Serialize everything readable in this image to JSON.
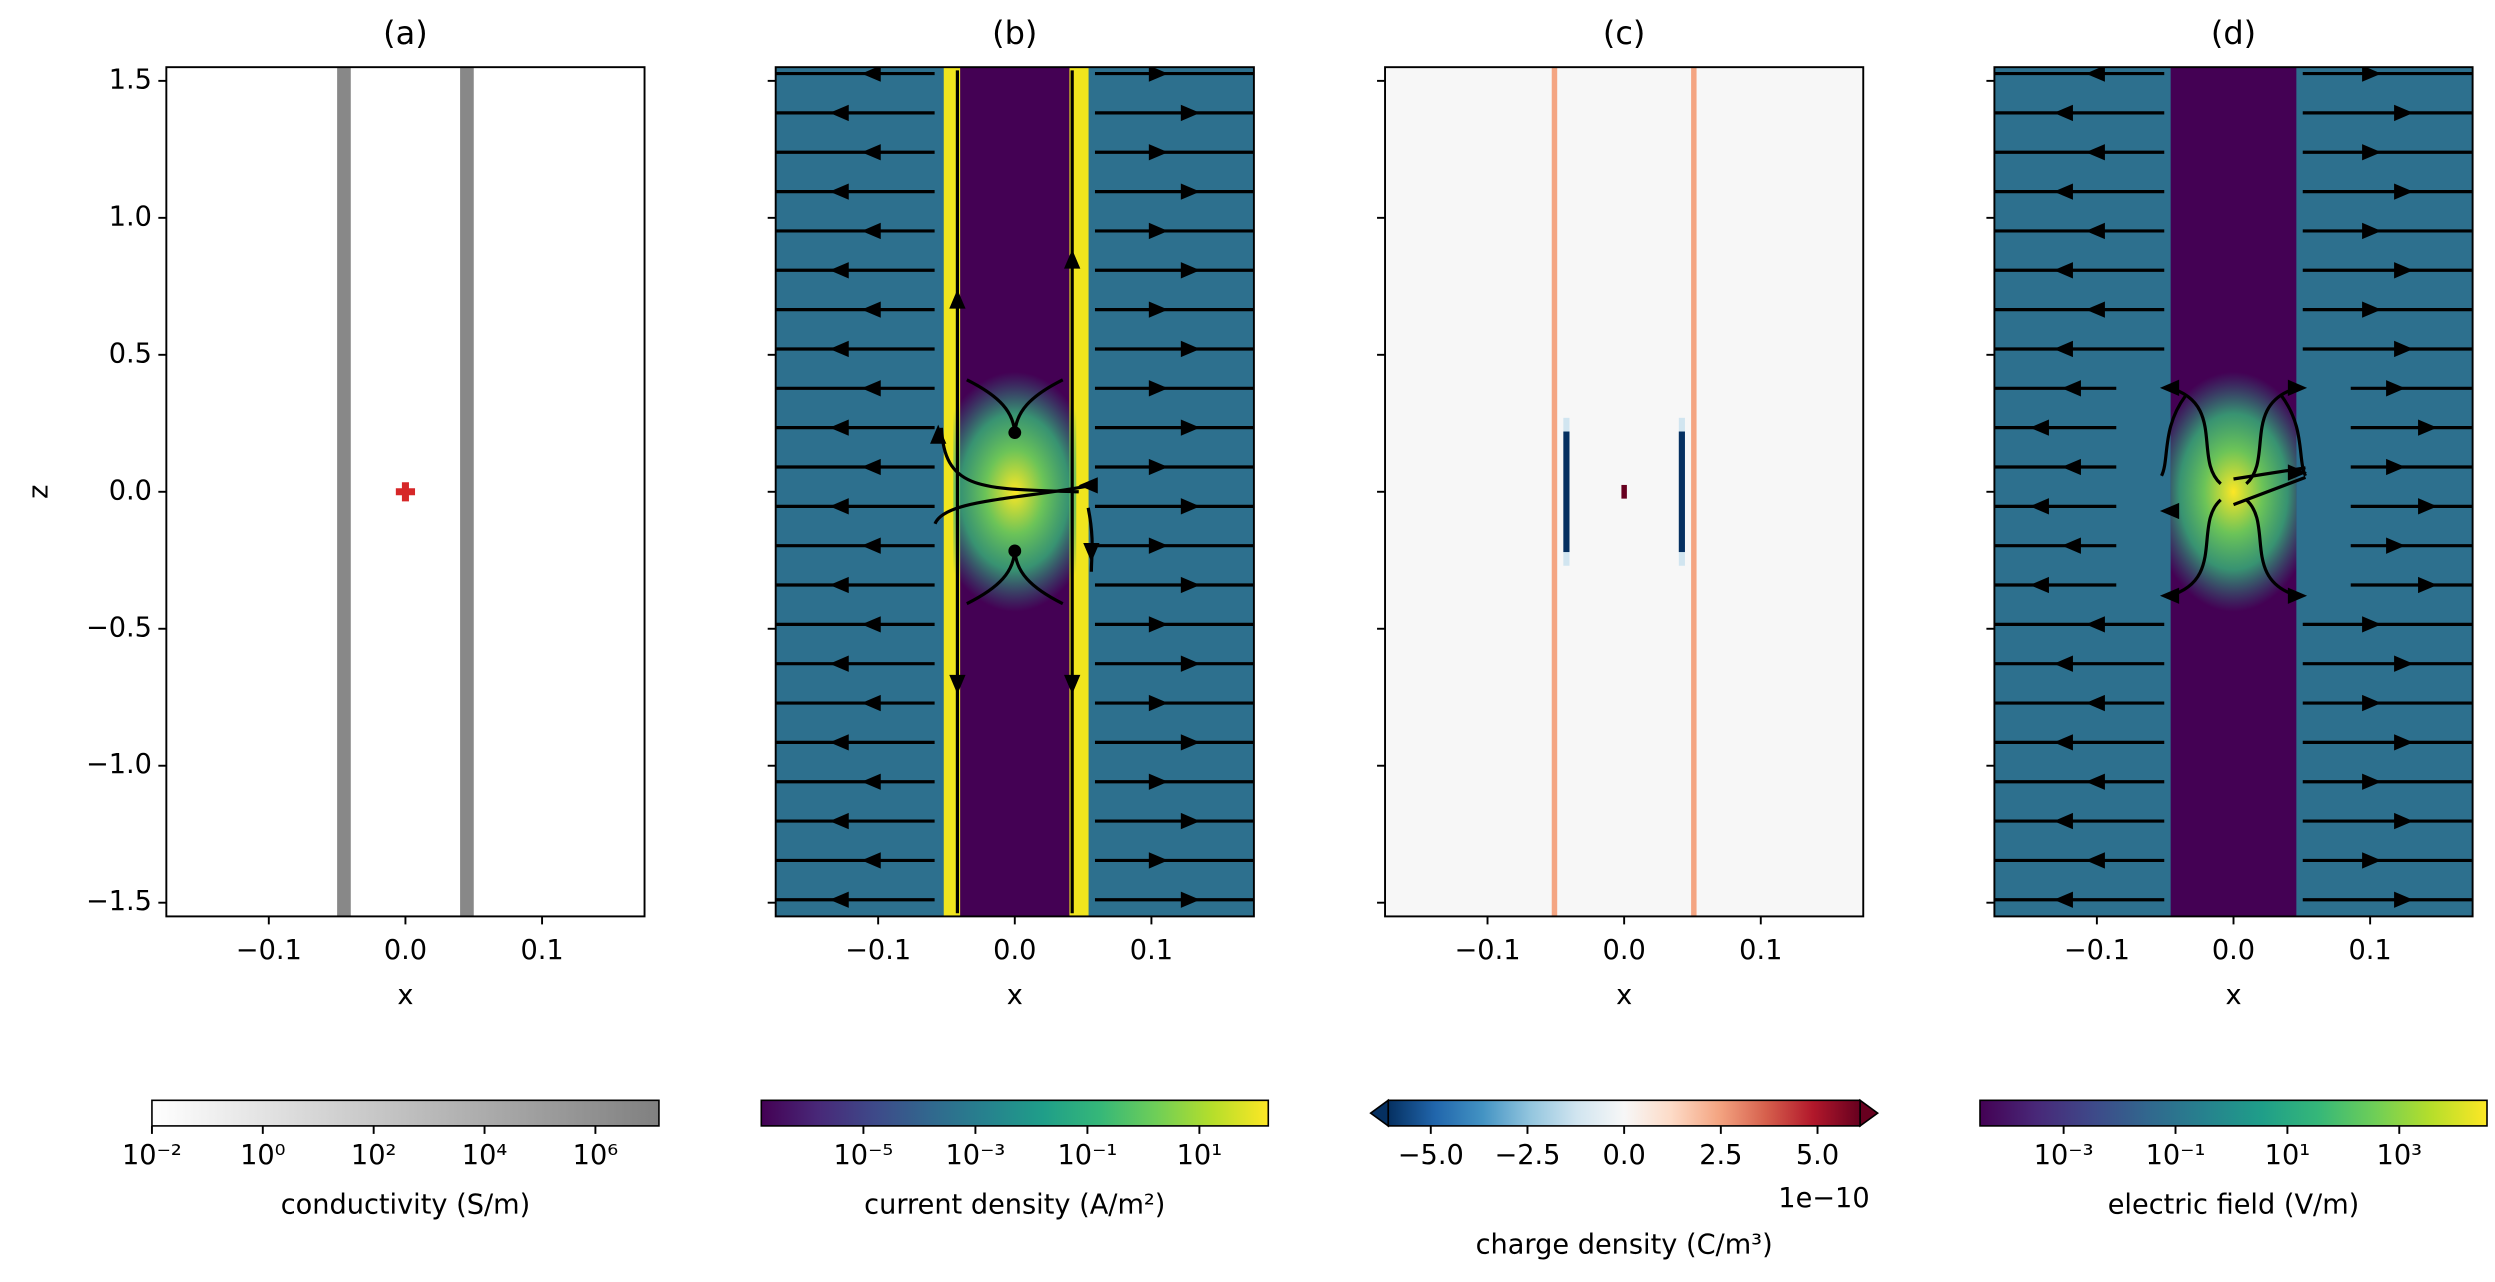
{
  "chart_data": [
    {
      "type": "heatmap",
      "title": "(a)",
      "xlabel": "x",
      "ylabel": "z",
      "xlim": [
        -0.175,
        0.175
      ],
      "ylim": [
        -1.55,
        1.55
      ],
      "xticks": [
        {
          "value": -0.1,
          "label": "−0.1"
        },
        {
          "value": 0,
          "label": "0.0"
        },
        0.1
      ],
      "yticks": [
        {
          "value": -1.5,
          "label": "−1.5"
        },
        {
          "value": -1.0,
          "label": "−1.0"
        },
        {
          "value": -0.5,
          "label": "−0.5"
        },
        {
          "value": 0,
          "label": "0.0"
        },
        0.5,
        {
          "value": 1.0,
          "label": "1.0"
        },
        1.5
      ],
      "ytick_labels": true,
      "background": "#ffffff",
      "bands": [
        {
          "x": [
            -0.05,
            -0.04
          ],
          "color": "#888888"
        },
        {
          "x": [
            0.04,
            0.05
          ],
          "color": "#888888"
        }
      ],
      "source": {
        "x": 0,
        "z": 0,
        "color": "#d62728"
      },
      "colorbar": {
        "label": "conductivity (S/m)",
        "scale": "log",
        "clim": [
          0.01,
          14000000
        ],
        "ticks": [
          {
            "value": 0.01,
            "label": "10⁻²"
          },
          {
            "value": 1,
            "label": "10⁰"
          },
          {
            "value": 100,
            "label": "10²"
          },
          {
            "value": 10000,
            "label": "10⁴"
          },
          {
            "value": 1000000,
            "label": "10⁶"
          }
        ],
        "colors": [
          "#ffffff",
          "#808080"
        ]
      }
    },
    {
      "type": "heatmap",
      "title": "(b)",
      "xlabel": "x",
      "xlim": [
        -0.175,
        0.175
      ],
      "ylim": [
        -1.55,
        1.55
      ],
      "xticks": [
        {
          "value": -0.1,
          "label": "−0.1"
        },
        {
          "value": 0,
          "label": "0.0"
        },
        0.1
      ],
      "yticks": [
        -1.5,
        -1.0,
        -0.5,
        0,
        0.5,
        1.0,
        1.5
      ],
      "ytick_labels": false,
      "background": "#2d708e",
      "bands": [
        {
          "x": [
            -0.045,
            0.045
          ],
          "color": "#440154"
        },
        {
          "x": [
            -0.052,
            -0.04
          ],
          "color": "#f0e51e"
        },
        {
          "x": [
            0.04,
            0.054
          ],
          "color": "#f0e51e"
        }
      ],
      "glow": {
        "x": 0,
        "z": 0
      },
      "streamlines": "current",
      "colorbar": {
        "label": "current density (A/m²)",
        "scale": "log",
        "clim": [
          1.5e-07,
          170
        ],
        "ticks": [
          {
            "value": 1e-05,
            "label": "10⁻⁵"
          },
          {
            "value": 0.001,
            "label": "10⁻³"
          },
          {
            "value": 0.1,
            "label": "10⁻¹"
          },
          {
            "value": 10,
            "label": "10¹"
          }
        ],
        "colors": [
          "#440154",
          "#482878",
          "#3e4989",
          "#31688e",
          "#26828e",
          "#1f9e89",
          "#35b779",
          "#6ece58",
          "#b5de2b",
          "#fde725"
        ]
      }
    },
    {
      "type": "heatmap",
      "title": "(c)",
      "xlabel": "x",
      "xlim": [
        -0.175,
        0.175
      ],
      "ylim": [
        -1.55,
        1.55
      ],
      "xticks": [
        {
          "value": -0.1,
          "label": "−0.1"
        },
        {
          "value": 0,
          "label": "0.0"
        },
        0.1
      ],
      "yticks": [
        -1.5,
        -1.0,
        -0.5,
        0,
        0.5,
        1.0,
        1.5
      ],
      "ytick_labels": false,
      "background": "#f7f7f7",
      "bands": [
        {
          "x": [
            -0.053,
            -0.049
          ],
          "color": "#f4a582"
        },
        {
          "x": [
            0.049,
            0.053
          ],
          "color": "#f4a582"
        },
        {
          "x": [
            -0.0445,
            -0.04
          ],
          "z": [
            -0.27,
            0.27
          ],
          "color": "#d1e5f0"
        },
        {
          "x": [
            0.04,
            0.0445
          ],
          "z": [
            -0.27,
            0.27
          ],
          "color": "#d1e5f0"
        },
        {
          "x": [
            -0.0445,
            -0.04
          ],
          "z": [
            -0.22,
            0.22
          ],
          "color": "#053061"
        },
        {
          "x": [
            0.04,
            0.0445
          ],
          "z": [
            -0.22,
            0.22
          ],
          "color": "#053061"
        },
        {
          "x": [
            -0.002,
            0.002
          ],
          "z": [
            -0.025,
            0.025
          ],
          "color": "#67001f"
        }
      ],
      "colorbar": {
        "label": "charge density (C/m³)",
        "scale": "linear",
        "clim": [
          -6.1,
          6.1
        ],
        "extend": "both",
        "offset": "1e−10",
        "ticks": [
          {
            "value": -5,
            "label": "−5.0"
          },
          {
            "value": -2.5,
            "label": "−2.5"
          },
          {
            "value": 0,
            "label": "0.0"
          },
          2.5,
          {
            "value": 5,
            "label": "5.0"
          }
        ],
        "colors": [
          "#053061",
          "#2166ac",
          "#4393c3",
          "#92c5de",
          "#d1e5f0",
          "#f7f7f7",
          "#fddbc7",
          "#f4a582",
          "#d6604d",
          "#b2182b",
          "#67001f"
        ]
      }
    },
    {
      "type": "heatmap",
      "title": "(d)",
      "xlabel": "x",
      "xlim": [
        -0.175,
        0.175
      ],
      "ylim": [
        -1.55,
        1.55
      ],
      "xticks": [
        {
          "value": -0.1,
          "label": "−0.1"
        },
        {
          "value": 0,
          "label": "0.0"
        },
        0.1
      ],
      "yticks": [
        -1.5,
        -1.0,
        -0.5,
        0,
        0.5,
        1.0,
        1.5
      ],
      "ytick_labels": false,
      "background": "#2d708e",
      "bands": [
        {
          "x": [
            -0.046,
            0.046
          ],
          "color": "#440154"
        }
      ],
      "glow": {
        "x": 0,
        "z": 0
      },
      "streamlines": "field",
      "colorbar": {
        "label": "electric field (V/m)",
        "scale": "log",
        "clim": [
          3.2e-05,
          37000
        ],
        "ticks": [
          {
            "value": 0.001,
            "label": "10⁻³"
          },
          {
            "value": 0.1,
            "label": "10⁻¹"
          },
          {
            "value": 10,
            "label": "10¹"
          },
          {
            "value": 1000,
            "label": "10³"
          }
        ],
        "colors": [
          "#440154",
          "#482878",
          "#3e4989",
          "#31688e",
          "#26828e",
          "#1f9e89",
          "#35b779",
          "#6ece58",
          "#b5de2b",
          "#fde725"
        ]
      }
    }
  ]
}
